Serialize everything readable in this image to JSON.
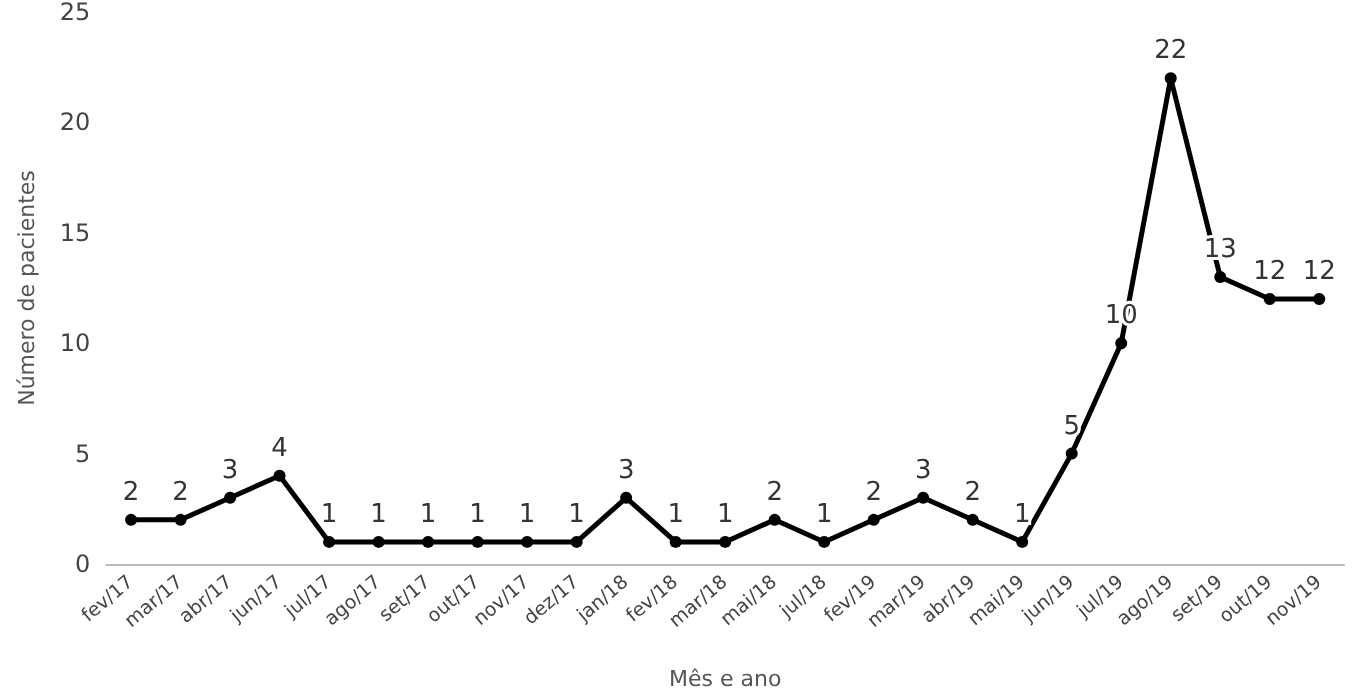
{
  "chart_data": {
    "type": "line",
    "xlabel": "Mês e ano",
    "ylabel": "Número de pacientes",
    "categories": [
      "fev/17",
      "mar/17",
      "abr/17",
      "jun/17",
      "jul/17",
      "ago/17",
      "set/17",
      "out/17",
      "nov/17",
      "dez/17",
      "jan/18",
      "fev/18",
      "mar/18",
      "mai/18",
      "jul/18",
      "fev/19",
      "mar/19",
      "abr/19",
      "mai/19",
      "jun/19",
      "jul/19",
      "ago/19",
      "set/19",
      "out/19",
      "nov/19"
    ],
    "series": [
      {
        "color": "#000000",
        "values": [
          2,
          2,
          3,
          4,
          1,
          1,
          1,
          1,
          1,
          1,
          3,
          1,
          1,
          2,
          1,
          2,
          3,
          2,
          1,
          5,
          10,
          22,
          13,
          12,
          12
        ]
      }
    ],
    "ylim": [
      0,
      25
    ],
    "yticks": [
      0,
      5,
      10,
      15,
      20,
      25
    ],
    "grid": false,
    "marker": "circle",
    "line_style": "solid",
    "data_labels": true
  }
}
